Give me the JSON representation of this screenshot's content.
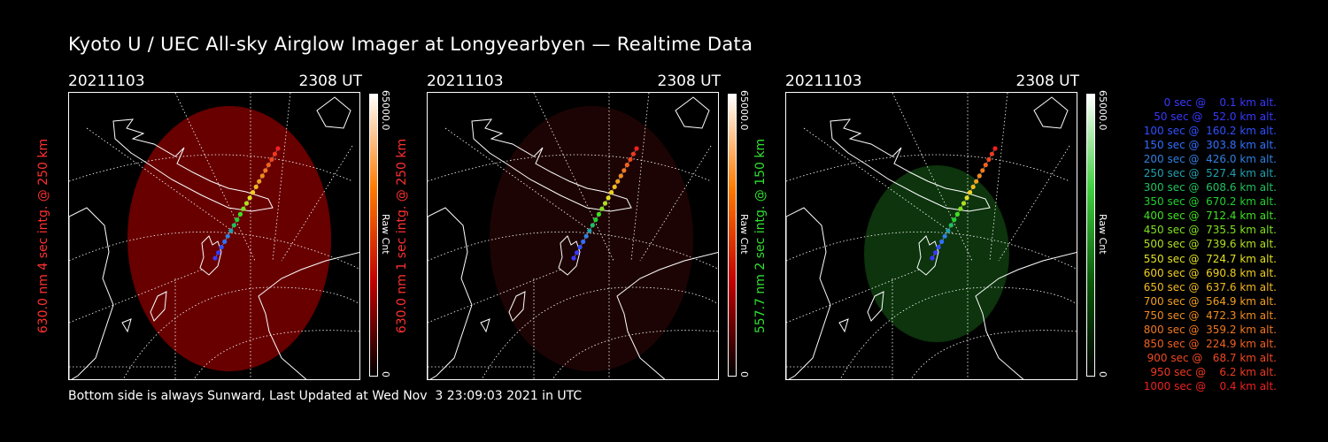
{
  "title": "Kyoto U / UEC All-sky Airglow Imager at Longyearbyen — Realtime Data",
  "panels": [
    {
      "date": "20211103",
      "time": "2308 UT",
      "side_label": "630.0 nm 4 sec intg. @ 250 km",
      "side_color": "#ff3030",
      "cbar_max": "65000.0",
      "cbar_unit": "Raw Cnt",
      "cbar_min": "0",
      "glow_color": "#7a0000",
      "glow_opacity": 0.85,
      "cbar_gradient": [
        "#ffffff",
        "#ff7a00",
        "#c00000",
        "#000000"
      ]
    },
    {
      "date": "20211103",
      "time": "2308 UT",
      "side_label": "630.0 nm 1 sec intg. @ 250 km",
      "side_color": "#ff3030",
      "cbar_max": "65000.0",
      "cbar_unit": "Raw Cnt",
      "cbar_min": "0",
      "glow_color": "#2a0505",
      "glow_opacity": 0.7,
      "cbar_gradient": [
        "#ffffff",
        "#ff7a00",
        "#c00000",
        "#000000"
      ]
    },
    {
      "date": "20211103",
      "time": "2308 UT",
      "side_label": "557.7 nm 2 sec intg. @ 150 km",
      "side_color": "#30e030",
      "cbar_max": "65000.0",
      "cbar_unit": "Raw Cnt",
      "cbar_min": "0",
      "glow_color": "#0e3a0e",
      "glow_opacity": 0.9,
      "cbar_gradient": [
        "#ffffff",
        "#40d040",
        "#0a5a0a",
        "#000000"
      ]
    }
  ],
  "legend": [
    {
      "text": "   0 sec @    0.1 km alt.",
      "color": "#3838ff"
    },
    {
      "text": "  50 sec @   52.0 km alt.",
      "color": "#3838ff"
    },
    {
      "text": " 100 sec @  160.2 km alt.",
      "color": "#3050ff"
    },
    {
      "text": " 150 sec @  303.8 km alt.",
      "color": "#3070ff"
    },
    {
      "text": " 200 sec @  426.0 km alt.",
      "color": "#3080e0"
    },
    {
      "text": " 250 sec @  527.4 km alt.",
      "color": "#20a0b0"
    },
    {
      "text": " 300 sec @  608.6 km alt.",
      "color": "#20c060"
    },
    {
      "text": " 350 sec @  670.2 km alt.",
      "color": "#20d030"
    },
    {
      "text": " 400 sec @  712.4 km alt.",
      "color": "#40e020"
    },
    {
      "text": " 450 sec @  735.5 km alt.",
      "color": "#80e020"
    },
    {
      "text": " 500 sec @  739.6 km alt.",
      "color": "#b0e020"
    },
    {
      "text": " 550 sec @  724.7 km alt.",
      "color": "#e0e020"
    },
    {
      "text": " 600 sec @  690.8 km alt.",
      "color": "#f0d020"
    },
    {
      "text": " 650 sec @  637.6 km alt.",
      "color": "#f0b820"
    },
    {
      "text": " 700 sec @  564.9 km alt.",
      "color": "#f0a020"
    },
    {
      "text": " 750 sec @  472.3 km alt.",
      "color": "#f08a20"
    },
    {
      "text": " 800 sec @  359.2 km alt.",
      "color": "#f07820"
    },
    {
      "text": " 850 sec @  224.9 km alt.",
      "color": "#f06020"
    },
    {
      "text": " 900 sec @   68.7 km alt.",
      "color": "#f04820"
    },
    {
      "text": " 950 sec @    6.2 km alt.",
      "color": "#f03820"
    },
    {
      "text": "1000 sec @    0.4 km alt.",
      "color": "#f02020"
    }
  ],
  "footer": "Bottom side is always Sunward, Last Updated at Wed Nov  3 23:09:03 2021 in UTC"
}
